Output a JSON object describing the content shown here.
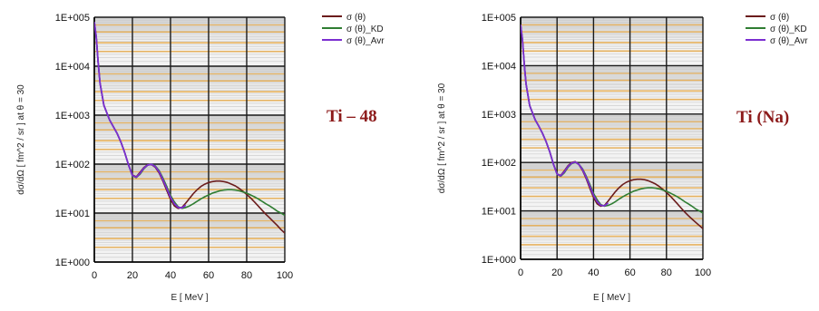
{
  "chart_data": [
    {
      "type": "line",
      "title": "",
      "annotation": "Ti – 48",
      "xlabel": "E [ MeV ]",
      "ylabel": "dσ/dΩ [ fm^2 / sr ] at θ = 30",
      "xlim": [
        0,
        100
      ],
      "ylim": [
        1,
        100000
      ],
      "yscale": "log",
      "x_ticks": [
        "0",
        "20",
        "40",
        "60",
        "80",
        "100"
      ],
      "y_ticks": [
        "1E+000",
        "1E+001",
        "1E+002",
        "1E+003",
        "1E+004",
        "1E+005"
      ],
      "grid": true,
      "legend_position": "top-right",
      "series": [
        {
          "name": "σ (θ)",
          "color": "#6b1c1c",
          "x": [
            0,
            1,
            2,
            3,
            5,
            8,
            10,
            12,
            14,
            16,
            18,
            20,
            22,
            24,
            26,
            28,
            30,
            32,
            34,
            36,
            38,
            40,
            42,
            44,
            46,
            48,
            50,
            52,
            54,
            56,
            58,
            60,
            62,
            64,
            66,
            68,
            70,
            72,
            74,
            76,
            78,
            80,
            82,
            84,
            86,
            88,
            90,
            92,
            94,
            96,
            98,
            100
          ],
          "y": [
            80000,
            40000,
            12000,
            4500,
            1600,
            800,
            580,
            420,
            280,
            170,
            95,
            60,
            55,
            68,
            85,
            97,
            98,
            86,
            66,
            45,
            29,
            19,
            14,
            12.5,
            13,
            16,
            20,
            25,
            30,
            35,
            39,
            42,
            44,
            45,
            45,
            44,
            42,
            39,
            36,
            32,
            28,
            24,
            20.5,
            17,
            14,
            11.5,
            9.5,
            8,
            6.7,
            5.6,
            4.6,
            3.9
          ]
        },
        {
          "name": "σ (θ)_KD",
          "color": "#2f7d32",
          "x": [
            0,
            1,
            2,
            3,
            5,
            8,
            10,
            12,
            14,
            16,
            18,
            20,
            22,
            24,
            26,
            28,
            30,
            32,
            34,
            36,
            38,
            40,
            42,
            44,
            46,
            48,
            50,
            52,
            54,
            56,
            58,
            60,
            62,
            64,
            66,
            68,
            70,
            72,
            74,
            76,
            78,
            80,
            82,
            84,
            86,
            88,
            90,
            92,
            94,
            96,
            98,
            100
          ],
          "y": [
            80000,
            40000,
            12000,
            4500,
            1600,
            800,
            580,
            420,
            280,
            170,
            95,
            58,
            53,
            62,
            80,
            95,
            100,
            92,
            74,
            52,
            35,
            23,
            17,
            13.5,
            12.5,
            13,
            14,
            15.5,
            17.5,
            19.5,
            21.5,
            23.5,
            25.5,
            27,
            28.5,
            29.5,
            30,
            30,
            29.5,
            28.5,
            27,
            25.5,
            23.5,
            21.5,
            19.5,
            17.5,
            15.5,
            14,
            12.5,
            11,
            10,
            9
          ]
        },
        {
          "name": "σ (θ)_Avr",
          "color": "#7b2fd0",
          "x": [
            0,
            1,
            2,
            3,
            5,
            8,
            10,
            12,
            14,
            16,
            18,
            20,
            22,
            24,
            26,
            28,
            30,
            32,
            34,
            36,
            38,
            40,
            42,
            44,
            46,
            48
          ],
          "y": [
            80000,
            40000,
            12000,
            4500,
            1600,
            800,
            580,
            420,
            280,
            170,
            95,
            59,
            54,
            65,
            83,
            96,
            99,
            89,
            70,
            48,
            32,
            21,
            15.5,
            13,
            12.8,
            14.5
          ]
        }
      ]
    },
    {
      "type": "line",
      "title": "",
      "annotation": "Ti (Na)",
      "xlabel": "E [ MeV ]",
      "ylabel": "dσ/dΩ [ fm^2 / sr ] at θ = 30",
      "xlim": [
        0,
        100
      ],
      "ylim": [
        1,
        100000
      ],
      "yscale": "log",
      "x_ticks": [
        "0",
        "20",
        "40",
        "60",
        "80",
        "100"
      ],
      "y_ticks": [
        "1E+000",
        "1E+001",
        "1E+002",
        "1E+003",
        "1E+004",
        "1E+005"
      ],
      "grid": true,
      "legend_position": "top-right",
      "series": [
        {
          "name": "σ (θ)",
          "color": "#6b1c1c",
          "x": [
            0,
            1,
            2,
            3,
            5,
            8,
            10,
            12,
            14,
            16,
            18,
            20,
            22,
            24,
            26,
            28,
            30,
            32,
            34,
            36,
            38,
            40,
            42,
            44,
            46,
            48,
            50,
            52,
            54,
            56,
            58,
            60,
            62,
            64,
            66,
            68,
            70,
            72,
            74,
            76,
            78,
            80,
            82,
            84,
            86,
            88,
            90,
            92,
            94,
            96,
            98,
            100
          ],
          "y": [
            70000,
            35000,
            11000,
            4200,
            1500,
            760,
            560,
            400,
            270,
            165,
            92,
            58,
            54,
            67,
            86,
            100,
            104,
            90,
            68,
            46,
            29,
            19,
            14,
            12.5,
            13,
            16,
            20,
            25,
            30,
            35,
            39,
            42,
            44,
            45,
            45,
            44,
            42,
            39,
            36,
            32,
            28,
            24,
            20.5,
            17,
            14,
            11.5,
            9.5,
            8,
            6.8,
            5.8,
            5,
            4.3
          ]
        },
        {
          "name": "σ (θ)_KD",
          "color": "#2f7d32",
          "x": [
            0,
            1,
            2,
            3,
            5,
            8,
            10,
            12,
            14,
            16,
            18,
            20,
            22,
            24,
            26,
            28,
            30,
            32,
            34,
            36,
            38,
            40,
            42,
            44,
            46,
            48,
            50,
            52,
            54,
            56,
            58,
            60,
            62,
            64,
            66,
            68,
            70,
            72,
            74,
            76,
            78,
            80,
            82,
            84,
            86,
            88,
            90,
            92,
            94,
            96,
            98,
            100
          ],
          "y": [
            70000,
            35000,
            11000,
            4200,
            1500,
            760,
            560,
            400,
            270,
            165,
            92,
            57,
            52,
            61,
            80,
            95,
            100,
            92,
            74,
            52,
            35,
            23,
            17,
            13.5,
            12.5,
            13,
            14,
            15.5,
            17.5,
            19.5,
            21.5,
            23.5,
            25.5,
            27,
            28.5,
            29.5,
            30,
            30,
            29.5,
            28.5,
            27,
            25.5,
            23.5,
            21.5,
            19.5,
            17.5,
            15.5,
            14,
            12.5,
            11,
            10,
            9
          ]
        },
        {
          "name": "σ (θ)_Avr",
          "color": "#7b2fd0",
          "x": [
            0,
            1,
            2,
            3,
            5,
            8,
            10,
            12,
            14,
            16,
            18,
            20,
            22,
            24,
            26,
            28,
            30,
            32,
            34,
            36,
            38,
            40,
            42,
            44,
            46,
            48
          ],
          "y": [
            70000,
            35000,
            11000,
            4200,
            1500,
            760,
            560,
            400,
            270,
            165,
            92,
            57.5,
            53,
            64,
            83,
            97,
            102,
            91,
            71,
            49,
            32,
            21,
            15.5,
            13,
            12.8,
            14.5
          ]
        }
      ]
    }
  ],
  "colors": {
    "plot_background": "#f3f3f3",
    "minor_grid": "#cfcfcf",
    "highlight_grid": "#e6b25f",
    "major_grid": "#1a1a1a",
    "annotation": "#8c1a1a"
  }
}
